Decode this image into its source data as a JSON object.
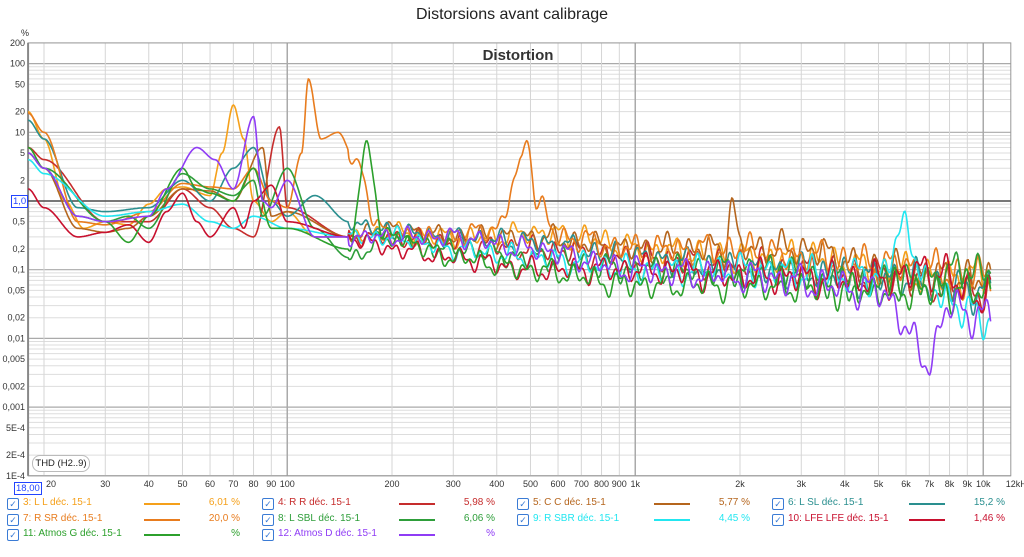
{
  "window_title": "Distorsions avant calibrage",
  "thd_button": "THD (H2..9)",
  "ref_marker": "1,0",
  "freq_marker": "18,00",
  "chart_data": {
    "type": "line",
    "title": "Distortion",
    "ylabel": "%",
    "xlabel": "Hz",
    "xscale": "log",
    "yscale": "log",
    "xlim": [
      18,
      12000
    ],
    "ylim": [
      0.0001,
      200
    ],
    "reference_line": 1.0,
    "grid": true,
    "legend_placement": "bottom",
    "y_ticks": [
      {
        "v": 200,
        "l": "200"
      },
      {
        "v": 100,
        "l": "100"
      },
      {
        "v": 50,
        "l": "50"
      },
      {
        "v": 20,
        "l": "20"
      },
      {
        "v": 10,
        "l": "10"
      },
      {
        "v": 5,
        "l": "5"
      },
      {
        "v": 2,
        "l": "2"
      },
      {
        "v": 0.5,
        "l": "0,5"
      },
      {
        "v": 0.2,
        "l": "0,2"
      },
      {
        "v": 0.1,
        "l": "0,1"
      },
      {
        "v": 0.05,
        "l": "0,05"
      },
      {
        "v": 0.02,
        "l": "0,02"
      },
      {
        "v": 0.01,
        "l": "0,01"
      },
      {
        "v": 0.005,
        "l": "0,005"
      },
      {
        "v": 0.002,
        "l": "0,002"
      },
      {
        "v": 0.001,
        "l": "0,001"
      },
      {
        "v": 0.0005,
        "l": "5E-4"
      },
      {
        "v": 0.0002,
        "l": "2E-4"
      },
      {
        "v": 0.0001,
        "l": "1E-4"
      }
    ],
    "x_ticks": [
      {
        "v": 20,
        "l": "20"
      },
      {
        "v": 30,
        "l": "30"
      },
      {
        "v": 40,
        "l": "40"
      },
      {
        "v": 50,
        "l": "50"
      },
      {
        "v": 60,
        "l": "60"
      },
      {
        "v": 70,
        "l": "70"
      },
      {
        "v": 80,
        "l": "80"
      },
      {
        "v": 90,
        "l": "90"
      },
      {
        "v": 100,
        "l": "100"
      },
      {
        "v": 200,
        "l": "200"
      },
      {
        "v": 300,
        "l": "300"
      },
      {
        "v": 400,
        "l": "400"
      },
      {
        "v": 500,
        "l": "500"
      },
      {
        "v": 600,
        "l": "600"
      },
      {
        "v": 700,
        "l": "700"
      },
      {
        "v": 800,
        "l": "800"
      },
      {
        "v": 900,
        "l": "900"
      },
      {
        "v": 1000,
        "l": "1k"
      },
      {
        "v": 2000,
        "l": "2k"
      },
      {
        "v": 3000,
        "l": "3k"
      },
      {
        "v": 4000,
        "l": "4k"
      },
      {
        "v": 5000,
        "l": "5k"
      },
      {
        "v": 6000,
        "l": "6k"
      },
      {
        "v": 7000,
        "l": "7k"
      },
      {
        "v": 8000,
        "l": "8k"
      },
      {
        "v": 9000,
        "l": "9k"
      },
      {
        "v": 10000,
        "l": "10k"
      },
      {
        "v": 12000,
        "l": "12kHz"
      }
    ],
    "series": [
      {
        "name": "3: L L déc. 15-1",
        "value": "6,01 %",
        "color": "#f5a01a",
        "points": [
          [
            18,
            20
          ],
          [
            20,
            8
          ],
          [
            23,
            1
          ],
          [
            26,
            0.4
          ],
          [
            30,
            0.5
          ],
          [
            35,
            0.45
          ],
          [
            40,
            0.9
          ],
          [
            45,
            1.5
          ],
          [
            50,
            1.6
          ],
          [
            60,
            1.2
          ],
          [
            65,
            5
          ],
          [
            70,
            25
          ],
          [
            75,
            8
          ],
          [
            80,
            1
          ],
          [
            90,
            0.5
          ],
          [
            100,
            0.7
          ],
          [
            120,
            0.3
          ],
          [
            150,
            0.3
          ],
          [
            200,
            0.35
          ],
          [
            300,
            0.3
          ],
          [
            400,
            0.3
          ],
          [
            500,
            0.35
          ],
          [
            700,
            0.3
          ],
          [
            1000,
            0.2
          ],
          [
            2000,
            0.15
          ],
          [
            3000,
            0.15
          ],
          [
            5000,
            0.1
          ],
          [
            7000,
            0.08
          ],
          [
            10000,
            0.08
          ]
        ]
      },
      {
        "name": "4: R R déc. 15-1",
        "value": "5,98 %",
        "color": "#c62d2d",
        "points": [
          [
            18,
            6
          ],
          [
            20,
            4
          ],
          [
            30,
            0.5
          ],
          [
            40,
            0.5
          ],
          [
            50,
            1.5
          ],
          [
            60,
            0.8
          ],
          [
            70,
            0.4
          ],
          [
            80,
            0.3
          ],
          [
            95,
            12
          ],
          [
            100,
            0.8
          ],
          [
            150,
            0.3
          ],
          [
            200,
            0.3
          ],
          [
            300,
            0.25
          ],
          [
            500,
            0.2
          ],
          [
            1000,
            0.15
          ],
          [
            2000,
            0.12
          ],
          [
            5000,
            0.08
          ],
          [
            10000,
            0.05
          ]
        ]
      },
      {
        "name": "5: C C déc. 15-1",
        "value": "5,77 %",
        "color": "#b5651d",
        "points": [
          [
            18,
            5
          ],
          [
            20,
            3
          ],
          [
            25,
            0.4
          ],
          [
            30,
            0.35
          ],
          [
            35,
            0.4
          ],
          [
            40,
            0.6
          ],
          [
            50,
            1.5
          ],
          [
            60,
            1.4
          ],
          [
            70,
            1
          ],
          [
            85,
            6
          ],
          [
            90,
            0.6
          ],
          [
            100,
            0.7
          ],
          [
            150,
            0.3
          ],
          [
            200,
            0.4
          ],
          [
            300,
            0.3
          ],
          [
            500,
            0.3
          ],
          [
            1000,
            0.2
          ],
          [
            1800,
            0.2
          ],
          [
            1900,
            1
          ],
          [
            2000,
            0.2
          ],
          [
            3000,
            0.2
          ],
          [
            5000,
            0.1
          ],
          [
            10000,
            0.07
          ]
        ]
      },
      {
        "name": "6: L SL déc. 15-1",
        "value": "15,2 %",
        "color": "#2a8f8f",
        "points": [
          [
            18,
            15
          ],
          [
            20,
            8
          ],
          [
            25,
            0.8
          ],
          [
            30,
            0.7
          ],
          [
            40,
            0.8
          ],
          [
            50,
            2
          ],
          [
            60,
            1
          ],
          [
            70,
            3
          ],
          [
            80,
            6
          ],
          [
            90,
            1
          ],
          [
            100,
            0.6
          ],
          [
            120,
            1.2
          ],
          [
            150,
            0.5
          ],
          [
            200,
            0.35
          ],
          [
            300,
            0.3
          ],
          [
            500,
            0.25
          ],
          [
            1000,
            0.15
          ],
          [
            2000,
            0.1
          ],
          [
            5000,
            0.08
          ],
          [
            10000,
            0.05
          ]
        ]
      },
      {
        "name": "7: R SR déc. 15-1",
        "value": "20,0 %",
        "color": "#e87c1e",
        "points": [
          [
            18,
            19
          ],
          [
            20,
            10
          ],
          [
            25,
            0.5
          ],
          [
            30,
            0.45
          ],
          [
            40,
            0.7
          ],
          [
            50,
            1.8
          ],
          [
            60,
            1.6
          ],
          [
            70,
            1.5
          ],
          [
            80,
            3
          ],
          [
            90,
            1
          ],
          [
            100,
            0.8
          ],
          [
            110,
            5
          ],
          [
            115,
            60
          ],
          [
            125,
            8
          ],
          [
            140,
            10
          ],
          [
            160,
            3
          ],
          [
            180,
            0.5
          ],
          [
            200,
            0.3
          ],
          [
            300,
            0.3
          ],
          [
            400,
            0.4
          ],
          [
            470,
            3
          ],
          [
            490,
            10
          ],
          [
            520,
            1
          ],
          [
            600,
            0.3
          ],
          [
            1000,
            0.2
          ],
          [
            2000,
            0.2
          ],
          [
            3000,
            0.15
          ],
          [
            5000,
            0.12
          ],
          [
            10000,
            0.08
          ]
        ]
      },
      {
        "name": "8: L SBL déc. 15-1",
        "value": "6,06 %",
        "color": "#2e9e3a",
        "points": [
          [
            18,
            5
          ],
          [
            20,
            3
          ],
          [
            30,
            0.5
          ],
          [
            35,
            0.6
          ],
          [
            40,
            0.4
          ],
          [
            50,
            2.5
          ],
          [
            60,
            1.5
          ],
          [
            70,
            1.2
          ],
          [
            80,
            2
          ],
          [
            85,
            0.6
          ],
          [
            100,
            3
          ],
          [
            120,
            0.4
          ],
          [
            150,
            0.15
          ],
          [
            200,
            0.3
          ],
          [
            300,
            0.2
          ],
          [
            500,
            0.15
          ],
          [
            1000,
            0.1
          ],
          [
            2000,
            0.1
          ],
          [
            5000,
            0.06
          ],
          [
            10000,
            0.1
          ]
        ]
      },
      {
        "name": "9: R SBR déc. 15-1",
        "value": "4,45 %",
        "color": "#22e6f0",
        "points": [
          [
            18,
            4
          ],
          [
            20,
            2.5
          ],
          [
            30,
            0.6
          ],
          [
            40,
            0.7
          ],
          [
            50,
            0.9
          ],
          [
            60,
            0.5
          ],
          [
            70,
            0.4
          ],
          [
            80,
            0.6
          ],
          [
            100,
            0.4
          ],
          [
            150,
            0.3
          ],
          [
            200,
            0.3
          ],
          [
            300,
            0.2
          ],
          [
            500,
            0.15
          ],
          [
            1000,
            0.1
          ],
          [
            2000,
            0.1
          ],
          [
            5000,
            0.08
          ],
          [
            6000,
            0.4
          ],
          [
            7000,
            0.05
          ],
          [
            10000,
            0.02
          ]
        ]
      },
      {
        "name": "10: LFE LFE déc. 15-1",
        "value": "1,46 %",
        "color": "#c8102e",
        "points": [
          [
            18,
            1.5
          ],
          [
            20,
            0.8
          ],
          [
            25,
            0.3
          ],
          [
            30,
            0.35
          ],
          [
            35,
            0.45
          ],
          [
            40,
            0.25
          ],
          [
            45,
            0.7
          ],
          [
            50,
            1.3
          ],
          [
            55,
            0.5
          ],
          [
            60,
            0.3
          ],
          [
            70,
            0.8
          ],
          [
            75,
            0.4
          ],
          [
            80,
            1
          ],
          [
            90,
            1.7
          ],
          [
            100,
            0.5
          ],
          [
            150,
            0.3
          ],
          [
            200,
            0.2
          ],
          [
            300,
            0.15
          ],
          [
            500,
            0.1
          ],
          [
            1000,
            0.1
          ],
          [
            2000,
            0.08
          ],
          [
            5000,
            0.07
          ],
          [
            7000,
            0.1
          ],
          [
            10000,
            0.04
          ]
        ]
      },
      {
        "name": "11: Atmos G déc. 15-1",
        "value": "%",
        "color": "#2ca02c",
        "points": [
          [
            18,
            6
          ],
          [
            20,
            3
          ],
          [
            25,
            0.6
          ],
          [
            30,
            0.5
          ],
          [
            35,
            0.25
          ],
          [
            40,
            0.6
          ],
          [
            50,
            3
          ],
          [
            55,
            1.5
          ],
          [
            60,
            1.3
          ],
          [
            70,
            1
          ],
          [
            80,
            3
          ],
          [
            90,
            0.4
          ],
          [
            100,
            0.4
          ],
          [
            150,
            0.2
          ],
          [
            170,
            6
          ],
          [
            190,
            0.3
          ],
          [
            200,
            0.3
          ],
          [
            300,
            0.15
          ],
          [
            500,
            0.1
          ],
          [
            1000,
            0.06
          ],
          [
            2000,
            0.06
          ],
          [
            5000,
            0.05
          ],
          [
            10000,
            0.05
          ]
        ]
      },
      {
        "name": "12: Atmos D déc. 15-1",
        "value": "%",
        "color": "#8f3cf5",
        "points": [
          [
            18,
            5
          ],
          [
            20,
            3
          ],
          [
            25,
            0.6
          ],
          [
            30,
            0.5
          ],
          [
            40,
            0.6
          ],
          [
            45,
            1.5
          ],
          [
            55,
            6
          ],
          [
            62,
            4
          ],
          [
            70,
            1.5
          ],
          [
            80,
            17
          ],
          [
            85,
            1
          ],
          [
            90,
            0.8
          ],
          [
            100,
            2
          ],
          [
            120,
            0.3
          ],
          [
            150,
            0.3
          ],
          [
            200,
            0.3
          ],
          [
            300,
            0.3
          ],
          [
            500,
            0.2
          ],
          [
            1000,
            0.1
          ],
          [
            2000,
            0.08
          ],
          [
            5000,
            0.05
          ],
          [
            7000,
            0.005
          ],
          [
            8000,
            0.03
          ],
          [
            10000,
            0.02
          ]
        ]
      }
    ]
  }
}
